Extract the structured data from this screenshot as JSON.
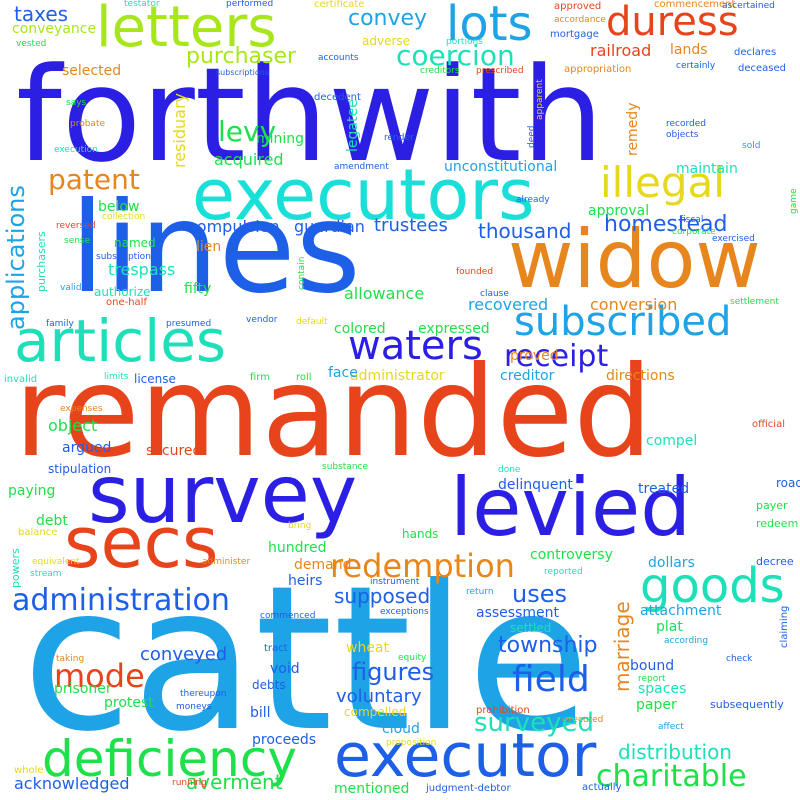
{
  "words": [
    {
      "text": "cattle",
      "color": "#1ea3e6"
    },
    {
      "text": "remanded",
      "color": "#e8441c"
    },
    {
      "text": "forthwith",
      "color": "#2c1fe4"
    },
    {
      "text": "lines",
      "color": "#1e5fe8"
    },
    {
      "text": "widow",
      "color": "#e6861c"
    },
    {
      "text": "survey",
      "color": "#2c1fe4"
    },
    {
      "text": "levied",
      "color": "#2c1fe4"
    },
    {
      "text": "executors",
      "color": "#18e0d8"
    },
    {
      "text": "articles",
      "color": "#1ee0b8"
    },
    {
      "text": "secs",
      "color": "#e8441c"
    },
    {
      "text": "executor",
      "color": "#1e5fe8"
    },
    {
      "text": "letters",
      "color": "#a8e61c"
    },
    {
      "text": "deficiency",
      "color": "#1ee04a"
    },
    {
      "text": "subscribed",
      "color": "#1ea3e6"
    },
    {
      "text": "duress",
      "color": "#e8441c"
    },
    {
      "text": "lots",
      "color": "#1ea3e6"
    },
    {
      "text": "waters",
      "color": "#2c1fe4"
    },
    {
      "text": "goods",
      "color": "#1ee0b8"
    },
    {
      "text": "administration",
      "color": "#1e5fe8"
    },
    {
      "text": "redemption",
      "color": "#e6861c"
    },
    {
      "text": "illegal",
      "color": "#e6d81c"
    },
    {
      "text": "charitable",
      "color": "#1ee04a"
    },
    {
      "text": "mode",
      "color": "#e8441c"
    },
    {
      "text": "coercion",
      "color": "#1ee0b8"
    },
    {
      "text": "receipt",
      "color": "#2c1fe4"
    },
    {
      "text": "patent",
      "color": "#e6861c"
    },
    {
      "text": "field",
      "color": "#1e5fe8"
    },
    {
      "text": "surveyed",
      "color": "#1ee0b8"
    },
    {
      "text": "applications",
      "color": "#1ea3e6"
    },
    {
      "text": "levy",
      "color": "#1ee04a"
    },
    {
      "text": "purchaser",
      "color": "#a8e61c"
    },
    {
      "text": "homestead",
      "color": "#1e5fe8"
    },
    {
      "text": "convey",
      "color": "#1ea3e6"
    },
    {
      "text": "taxes",
      "color": "#1e5fe8"
    },
    {
      "text": "trustees",
      "color": "#1e5fe8"
    },
    {
      "text": "thousand",
      "color": "#1e5fe8"
    },
    {
      "text": "supposed",
      "color": "#1e5fe8"
    },
    {
      "text": "township",
      "color": "#1e5fe8"
    },
    {
      "text": "figures",
      "color": "#1e5fe8"
    },
    {
      "text": "distribution",
      "color": "#1ee0b8"
    },
    {
      "text": "marriage",
      "color": "#e6861c"
    },
    {
      "text": "uses",
      "color": "#1e5fe8"
    },
    {
      "text": "conveyed",
      "color": "#1e5fe8"
    },
    {
      "text": "voluntary",
      "color": "#1e5fe8"
    },
    {
      "text": "acknowledged",
      "color": "#1e5fe8"
    },
    {
      "text": "averment",
      "color": "#1ee04a"
    },
    {
      "text": "railroad",
      "color": "#e8441c"
    },
    {
      "text": "lands",
      "color": "#e6861c"
    },
    {
      "text": "mining",
      "color": "#1ee04a"
    },
    {
      "text": "acquired",
      "color": "#1ee04a"
    },
    {
      "text": "compulsion",
      "color": "#1e5fe8"
    },
    {
      "text": "guardian",
      "color": "#1e5fe8"
    },
    {
      "text": "lien",
      "color": "#e6861c"
    },
    {
      "text": "trespass",
      "color": "#1ee0b8"
    },
    {
      "text": "fifty",
      "color": "#1ee04a"
    },
    {
      "text": "allowance",
      "color": "#1ee04a"
    },
    {
      "text": "colored",
      "color": "#1ee04a"
    },
    {
      "text": "administrator",
      "color": "#e6d81c"
    },
    {
      "text": "creditor",
      "color": "#1ea3e6"
    },
    {
      "text": "recovered",
      "color": "#1ea3e6"
    },
    {
      "text": "conversion",
      "color": "#e6861c"
    },
    {
      "text": "expressed",
      "color": "#1ee04a"
    },
    {
      "text": "proved",
      "color": "#e6861c"
    },
    {
      "text": "directions",
      "color": "#e6861c"
    },
    {
      "text": "approval",
      "color": "#1ee04a"
    },
    {
      "text": "maintain",
      "color": "#1ee0b8"
    },
    {
      "text": "unconstitutional",
      "color": "#1ea3e6"
    },
    {
      "text": "below",
      "color": "#1ee04a"
    },
    {
      "text": "authorize",
      "color": "#1ee0b8"
    },
    {
      "text": "named",
      "color": "#1ee04a"
    },
    {
      "text": "selected",
      "color": "#e6861c"
    },
    {
      "text": "adverse",
      "color": "#e6d81c"
    },
    {
      "text": "conveyance",
      "color": "#a8e61c"
    },
    {
      "text": "residuary",
      "color": "#e6d81c"
    },
    {
      "text": "legatee",
      "color": "#1ee0b8"
    },
    {
      "text": "remedy",
      "color": "#e6861c"
    },
    {
      "text": "object",
      "color": "#1ee04a"
    },
    {
      "text": "argued",
      "color": "#1e5fe8"
    },
    {
      "text": "secured",
      "color": "#e8441c"
    },
    {
      "text": "stipulation",
      "color": "#1e5fe8"
    },
    {
      "text": "paying",
      "color": "#1ee04a"
    },
    {
      "text": "debt",
      "color": "#1ee04a"
    },
    {
      "text": "hundred",
      "color": "#1ee04a"
    },
    {
      "text": "hands",
      "color": "#1ee04a"
    },
    {
      "text": "delinquent",
      "color": "#1e5fe8"
    },
    {
      "text": "treated",
      "color": "#1e5fe8"
    },
    {
      "text": "controversy",
      "color": "#1ee04a"
    },
    {
      "text": "dollars",
      "color": "#1ea3e6"
    },
    {
      "text": "demand",
      "color": "#e6861c"
    },
    {
      "text": "heirs",
      "color": "#1e5fe8"
    },
    {
      "text": "assessment",
      "color": "#1e5fe8"
    },
    {
      "text": "settled",
      "color": "#1ee0b8"
    },
    {
      "text": "attachment",
      "color": "#1ea3e6"
    },
    {
      "text": "plat",
      "color": "#1ee04a"
    },
    {
      "text": "compel",
      "color": "#1ee0b8"
    },
    {
      "text": "face",
      "color": "#1ea3e6"
    },
    {
      "text": "wheat",
      "color": "#e6d81c"
    },
    {
      "text": "prisoner",
      "color": "#1ee04a"
    },
    {
      "text": "protest",
      "color": "#1ee04a"
    },
    {
      "text": "void",
      "color": "#1e5fe8"
    },
    {
      "text": "debts",
      "color": "#1e5fe8"
    },
    {
      "text": "bill",
      "color": "#1e5fe8"
    },
    {
      "text": "compelled",
      "color": "#e6d81c"
    },
    {
      "text": "cloud",
      "color": "#1ea3e6"
    },
    {
      "text": "proceeds",
      "color": "#1e5fe8"
    },
    {
      "text": "mentioned",
      "color": "#1ee04a"
    },
    {
      "text": "bound",
      "color": "#1e5fe8"
    },
    {
      "text": "spaces",
      "color": "#1ee0b8"
    },
    {
      "text": "paper",
      "color": "#1ee04a"
    },
    {
      "text": "subsequently",
      "color": "#1e5fe8"
    },
    {
      "text": "road",
      "color": "#1e5fe8"
    },
    {
      "text": "payer",
      "color": "#1ee04a"
    },
    {
      "text": "redeem",
      "color": "#1ee04a"
    },
    {
      "text": "decree",
      "color": "#1e5fe8"
    },
    {
      "text": "claiming",
      "color": "#1e5fe8"
    },
    {
      "text": "official",
      "color": "#e8441c"
    },
    {
      "text": "license",
      "color": "#1e5fe8"
    },
    {
      "text": "firm",
      "color": "#1ee04a"
    },
    {
      "text": "roll",
      "color": "#1ee04a"
    },
    {
      "text": "invalid",
      "color": "#1ee0b8"
    },
    {
      "text": "limits",
      "color": "#1ee0b8"
    },
    {
      "text": "expenses",
      "color": "#e6861c"
    },
    {
      "text": "substance",
      "color": "#1ee04a"
    },
    {
      "text": "done",
      "color": "#1ee0b8"
    },
    {
      "text": "bring",
      "color": "#e6d81c"
    },
    {
      "text": "balance",
      "color": "#e6d81c"
    },
    {
      "text": "powers",
      "color": "#1ee0b8"
    },
    {
      "text": "equivalent",
      "color": "#e6d81c"
    },
    {
      "text": "stream",
      "color": "#1ee0b8"
    },
    {
      "text": "administer",
      "color": "#e6861c"
    },
    {
      "text": "reported",
      "color": "#1ee0b8"
    },
    {
      "text": "instrument",
      "color": "#1e5fe8"
    },
    {
      "text": "commenced",
      "color": "#1e5fe8"
    },
    {
      "text": "exceptions",
      "color": "#1e5fe8"
    },
    {
      "text": "return",
      "color": "#1ea3e6"
    },
    {
      "text": "according",
      "color": "#1ea3e6"
    },
    {
      "text": "tract",
      "color": "#1e5fe8"
    },
    {
      "text": "equity",
      "color": "#1ee04a"
    },
    {
      "text": "taking",
      "color": "#e6861c"
    },
    {
      "text": "thereupon",
      "color": "#1e5fe8"
    },
    {
      "text": "moneys",
      "color": "#1e5fe8"
    },
    {
      "text": "prohibition",
      "color": "#e8441c"
    },
    {
      "text": "executed",
      "color": "#e6861c"
    },
    {
      "text": "proposition",
      "color": "#e6d81c"
    },
    {
      "text": "report",
      "color": "#1ee04a"
    },
    {
      "text": "affect",
      "color": "#1ea3e6"
    },
    {
      "text": "check",
      "color": "#1e5fe8"
    },
    {
      "text": "whole",
      "color": "#e6d81c"
    },
    {
      "text": "running",
      "color": "#e8441c"
    },
    {
      "text": "judgment-debtor",
      "color": "#1e5fe8"
    },
    {
      "text": "actually",
      "color": "#1e5fe8"
    },
    {
      "text": "testator",
      "color": "#1ee0b8"
    },
    {
      "text": "performed",
      "color": "#1e5fe8"
    },
    {
      "text": "certificate",
      "color": "#e6d81c"
    },
    {
      "text": "approved",
      "color": "#e8441c"
    },
    {
      "text": "commencement",
      "color": "#e6861c"
    },
    {
      "text": "ascertained",
      "color": "#1e5fe8"
    },
    {
      "text": "accordance",
      "color": "#e6861c"
    },
    {
      "text": "portions",
      "color": "#1ee0b8"
    },
    {
      "text": "mortgage",
      "color": "#1e5fe8"
    },
    {
      "text": "vested",
      "color": "#1ee04a"
    },
    {
      "text": "accounts",
      "color": "#1e5fe8"
    },
    {
      "text": "creditors",
      "color": "#1ee04a"
    },
    {
      "text": "prescribed",
      "color": "#e8441c"
    },
    {
      "text": "subscriptions",
      "color": "#1e5fe8"
    },
    {
      "text": "appropriation",
      "color": "#e6861c"
    },
    {
      "text": "declares",
      "color": "#1e5fe8"
    },
    {
      "text": "certainly",
      "color": "#1e5fe8"
    },
    {
      "text": "deceased",
      "color": "#1e5fe8"
    },
    {
      "text": "says",
      "color": "#1ee04a"
    },
    {
      "text": "decedent",
      "color": "#1e5fe8"
    },
    {
      "text": "apparent",
      "color": "#e6d81c"
    },
    {
      "text": "probate",
      "color": "#e6861c"
    },
    {
      "text": "recorded",
      "color": "#1e5fe8"
    },
    {
      "text": "objects",
      "color": "#1e5fe8"
    },
    {
      "text": "execution",
      "color": "#1ee0b8"
    },
    {
      "text": "render",
      "color": "#1e5fe8"
    },
    {
      "text": "deed",
      "color": "#1e5fe8"
    },
    {
      "text": "sold",
      "color": "#1ea3e6"
    },
    {
      "text": "amendment",
      "color": "#1e5fe8"
    },
    {
      "text": "reversed",
      "color": "#e8441c"
    },
    {
      "text": "collection",
      "color": "#e6d81c"
    },
    {
      "text": "already",
      "color": "#1e5fe8"
    },
    {
      "text": "fiscal",
      "color": "#1e5fe8"
    },
    {
      "text": "corporate",
      "color": "#1ee04a"
    },
    {
      "text": "game",
      "color": "#1ee04a"
    },
    {
      "text": "sense",
      "color": "#1ee04a"
    },
    {
      "text": "subscription",
      "color": "#1e5fe8"
    },
    {
      "text": "contain",
      "color": "#1ee04a"
    },
    {
      "text": "exercised",
      "color": "#1e5fe8"
    },
    {
      "text": "purchasers",
      "color": "#1ee0b8"
    },
    {
      "text": "valid",
      "color": "#1ea3e6"
    },
    {
      "text": "founded",
      "color": "#e8441c"
    },
    {
      "text": "one-half",
      "color": "#e8441c"
    },
    {
      "text": "clause",
      "color": "#1e5fe8"
    },
    {
      "text": "settlement",
      "color": "#1ee04a"
    },
    {
      "text": "family",
      "color": "#1e5fe8"
    },
    {
      "text": "presumed",
      "color": "#1e5fe8"
    },
    {
      "text": "vendor",
      "color": "#1e5fe8"
    },
    {
      "text": "default",
      "color": "#e6d81c"
    }
  ]
}
